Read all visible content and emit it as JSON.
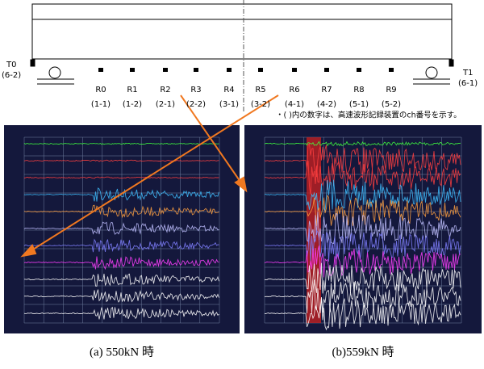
{
  "beam": {
    "supports": [
      {
        "label": "T0",
        "ch": "(6-2)"
      },
      {
        "label": "T1",
        "ch": "(6-1)"
      }
    ],
    "sensors": [
      {
        "label": "R0",
        "ch": "(1-1)"
      },
      {
        "label": "R1",
        "ch": "(1-2)"
      },
      {
        "label": "R2",
        "ch": "(2-1)"
      },
      {
        "label": "R3",
        "ch": "(2-2)"
      },
      {
        "label": "R4",
        "ch": "(3-1)"
      },
      {
        "label": "R5",
        "ch": "(3-2)"
      },
      {
        "label": "R6",
        "ch": "(4-1)"
      },
      {
        "label": "R7",
        "ch": "(4-2)"
      },
      {
        "label": "R8",
        "ch": "(5-1)"
      },
      {
        "label": "R9",
        "ch": "(5-2)"
      }
    ],
    "note": "・( )内の数字は、高速波形記録装置のch番号を示す。"
  },
  "panels": [
    {
      "caption": "(a) 550kN 時"
    },
    {
      "caption": "(b)559kN 時"
    }
  ]
}
